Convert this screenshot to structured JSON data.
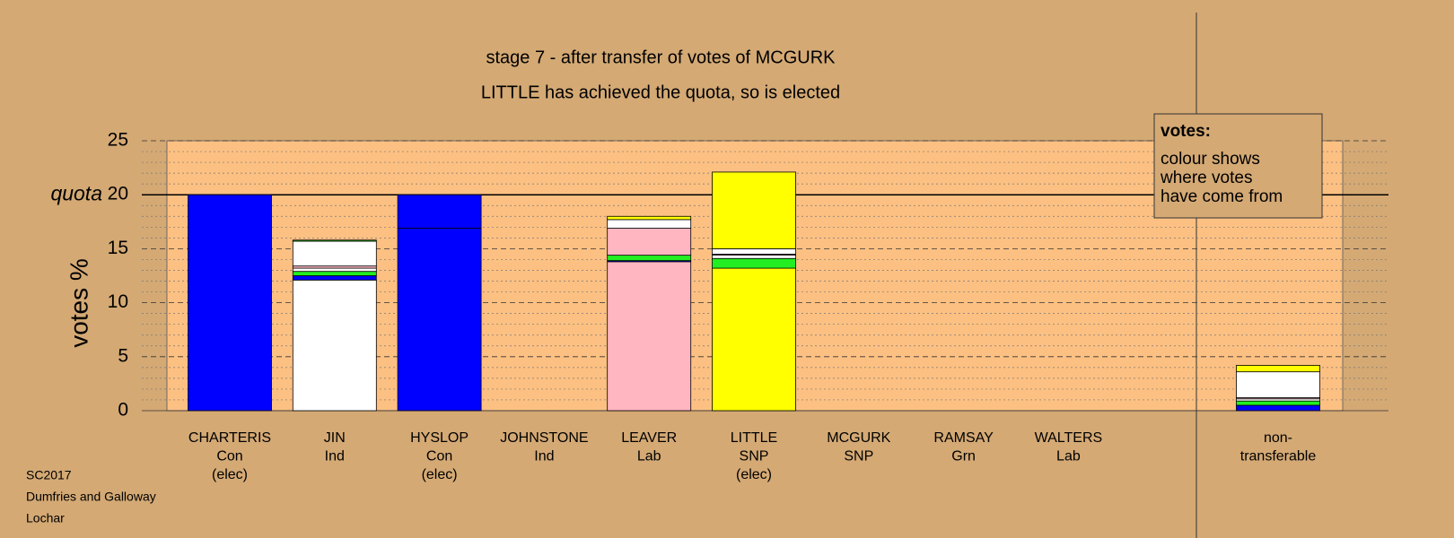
{
  "chart_data": {
    "type": "stacked-bar",
    "title": "stage 7 - after transfer of votes of MCGURK",
    "subtitle": "LITTLE has achieved the quota, so is elected",
    "y_label": "votes %",
    "ylim": [
      0,
      25
    ],
    "yticks": [
      0,
      5,
      10,
      15,
      20,
      25
    ],
    "minor_grid_step": 1,
    "quota": 20,
    "quota_label": "quota",
    "legend": {
      "title": "votes:",
      "lines": [
        "colour shows",
        "where votes",
        "have come from"
      ]
    },
    "footnote": [
      "SC2017",
      "Dumfries and Galloway",
      "Lochar"
    ],
    "categories": [
      [
        "CHARTERIS",
        "Con",
        "(elec)"
      ],
      [
        "JIN",
        "Ind"
      ],
      [
        "HYSLOP",
        "Con",
        "(elec)"
      ],
      [
        "JOHNSTONE",
        "Ind"
      ],
      [
        "LEAVER",
        "Lab"
      ],
      [
        "LITTLE",
        "SNP",
        "(elec)"
      ],
      [
        "MCGURK",
        "SNP"
      ],
      [
        "RAMSAY",
        "Grn"
      ],
      [
        "WALTERS",
        "Lab"
      ],
      [
        "non-",
        "transferable"
      ]
    ],
    "stacks": [
      [
        {
          "color": "#0000ff",
          "value": 20
        }
      ],
      [
        {
          "color": "#ffffff",
          "value": 12.1
        },
        {
          "color": "#0000ff",
          "value": 0.4
        },
        {
          "color": "#22ee22",
          "value": 0.4
        },
        {
          "color": "#ffffff",
          "value": 0.3
        },
        {
          "color": "#ffb6c1",
          "value": 0.2
        },
        {
          "color": "#ffffff",
          "value": 2.3
        },
        {
          "color": "#22ee22",
          "value": 0.1
        }
      ],
      [
        {
          "color": "#0000ff",
          "value": 16.9
        },
        {
          "color": "#0000ff",
          "value": 3.1
        }
      ],
      [],
      [
        {
          "color": "#ffb6c1",
          "value": 13.8
        },
        {
          "color": "#0000ff",
          "value": 0.1
        },
        {
          "color": "#22ee22",
          "value": 0.5
        },
        {
          "color": "#ffb6c1",
          "value": 2.5
        },
        {
          "color": "#ffffff",
          "value": 0.8
        },
        {
          "color": "#ffff00",
          "value": 0.3
        }
      ],
      [
        {
          "color": "#ffff00",
          "value": 13.2
        },
        {
          "color": "#22ee22",
          "value": 0.9
        },
        {
          "color": "#ffffff",
          "value": 0.3
        },
        {
          "color": "#ffb6c1",
          "value": 0.1
        },
        {
          "color": "#ffffff",
          "value": 0.5
        },
        {
          "color": "#ffff00",
          "value": 7.1
        }
      ],
      [],
      [],
      [],
      [
        {
          "color": "#0000ff",
          "value": 0.5
        },
        {
          "color": "#22ee22",
          "value": 0.4
        },
        {
          "color": "#ffffff",
          "value": 0.2
        },
        {
          "color": "#ffb6c1",
          "value": 0.1
        },
        {
          "color": "#ffffff",
          "value": 2.4
        },
        {
          "color": "#ffff00",
          "value": 0.6
        }
      ]
    ]
  }
}
